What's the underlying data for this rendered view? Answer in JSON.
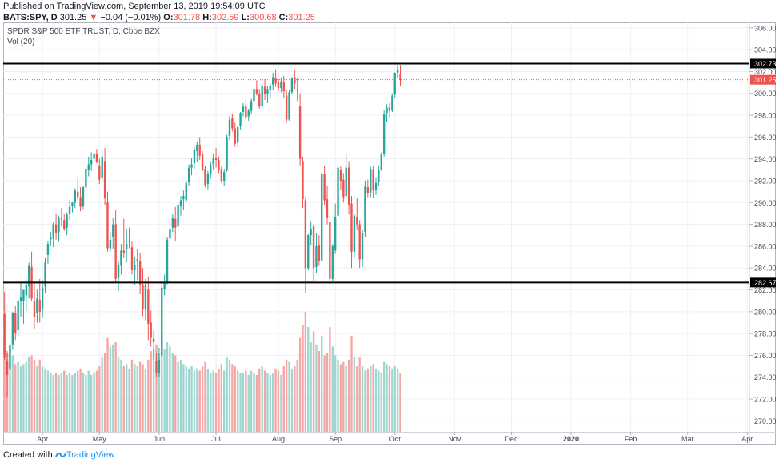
{
  "header": {
    "published": "Published on TradingView.com, September 13, 2019 19:54:09 UTC",
    "symbol": "BATS:SPY, D",
    "last": "301.25",
    "arrow": "▼",
    "change": "−0.04 (−0.01%)",
    "o_label": "O:",
    "o": "301.78",
    "h_label": "H:",
    "h": "302.59",
    "l_label": "L:",
    "l": "300.68",
    "c_label": "C:",
    "c": "301.25"
  },
  "legend": {
    "title": "SPDR S&P 500 ETF TRUST, D, Cboe BZX",
    "volume": "Vol (20)"
  },
  "footer": {
    "created": "Created with",
    "brand": "TradingView"
  },
  "colors": {
    "up": "#26a69a",
    "down": "#ef5350",
    "vol_up": "#9fd6cf",
    "vol_down": "#f5a6a5",
    "grid": "#eef0f3",
    "axis": "#434651",
    "price_tag": "#ef5350",
    "level": "#000000"
  },
  "chart_data": {
    "type": "candlestick",
    "title": "SPDR S&P 500 ETF TRUST, D, Cboe BZX",
    "y_axis": {
      "min": 269,
      "max": 306.5,
      "ticks": [
        "270.00",
        "272.00",
        "274.00",
        "276.00",
        "278.00",
        "280.00",
        "282.00",
        "284.00",
        "286.00",
        "288.00",
        "290.00",
        "292.00",
        "294.00",
        "296.00",
        "298.00",
        "300.00",
        "302.00",
        "304.00",
        "306.00"
      ]
    },
    "x_axis": {
      "labels": [
        "Apr",
        "May",
        "Jun",
        "Jul",
        "Aug",
        "Sep",
        "Oct",
        "Nov",
        "Dec",
        "2020",
        "Feb",
        "Mar",
        "Apr"
      ],
      "label_index": [
        14,
        35,
        57,
        78,
        101,
        122,
        144,
        166,
        187,
        209,
        231,
        252,
        274
      ],
      "bold": [
        "2020"
      ],
      "total_slots": 275
    },
    "levels": [
      {
        "label": "302.73",
        "value": 302.73
      },
      {
        "label": "282.67",
        "value": 282.67
      }
    ],
    "last_price": {
      "label": "301.25",
      "value": 301.25
    },
    "candles": [
      [
        279.8,
        281.8,
        275.6,
        275.8,
        6.6
      ],
      [
        275.5,
        276.4,
        272.2,
        274.2,
        6.2
      ],
      [
        274.7,
        277.5,
        273.8,
        277.0,
        6.8
      ],
      [
        277.0,
        280.0,
        276.5,
        279.9,
        6.0
      ],
      [
        279.9,
        280.5,
        277.4,
        278.0,
        5.2
      ],
      [
        278.3,
        281.2,
        277.8,
        281.0,
        5.4
      ],
      [
        281.0,
        282.6,
        279.5,
        281.3,
        5.0
      ],
      [
        281.0,
        281.8,
        278.9,
        282.0,
        5.2
      ],
      [
        281.5,
        283.0,
        280.1,
        282.5,
        5.4
      ],
      [
        282.3,
        284.5,
        281.2,
        284.2,
        5.8
      ],
      [
        284.1,
        285.5,
        281.0,
        281.2,
        6.0
      ],
      [
        281.0,
        282.8,
        278.4,
        279.5,
        5.6
      ],
      [
        279.9,
        282.0,
        279.0,
        281.2,
        5.0
      ],
      [
        281.1,
        283.0,
        279.0,
        280.0,
        5.6
      ],
      [
        280.3,
        282.9,
        279.4,
        282.2,
        5.0
      ],
      [
        282.3,
        284.9,
        281.7,
        284.5,
        4.8
      ],
      [
        285.2,
        286.5,
        284.4,
        286.2,
        4.6
      ],
      [
        286.6,
        287.3,
        286.0,
        286.8,
        4.4
      ],
      [
        286.7,
        288.2,
        285.9,
        288.0,
        4.2
      ],
      [
        288.0,
        289.0,
        286.6,
        287.2,
        4.4
      ],
      [
        287.3,
        288.8,
        286.4,
        288.6,
        4.2
      ],
      [
        288.5,
        289.5,
        287.8,
        288.6,
        4.4
      ],
      [
        288.4,
        289.0,
        287.4,
        287.6,
        4.6
      ],
      [
        287.7,
        289.1,
        287.0,
        288.9,
        4.2
      ],
      [
        289.0,
        290.2,
        288.4,
        289.6,
        4.4
      ],
      [
        289.7,
        290.1,
        289.1,
        290.0,
        4.2
      ],
      [
        290.0,
        291.3,
        289.5,
        291.1,
        4.4
      ],
      [
        291.0,
        292.2,
        290.2,
        290.5,
        4.6
      ],
      [
        290.5,
        291.4,
        289.2,
        289.6,
        4.8
      ],
      [
        289.7,
        291.5,
        289.4,
        291.4,
        4.4
      ],
      [
        291.4,
        293.2,
        291.0,
        293.1,
        4.2
      ],
      [
        293.0,
        294.2,
        292.4,
        293.5,
        4.6
      ],
      [
        293.5,
        294.6,
        292.9,
        293.9,
        4.2
      ],
      [
        294.0,
        295.2,
        293.6,
        294.5,
        4.4
      ],
      [
        294.5,
        294.9,
        293.6,
        293.7,
        4.6
      ],
      [
        293.4,
        294.0,
        291.7,
        292.1,
        5.0
      ],
      [
        292.3,
        294.8,
        291.9,
        294.2,
        5.8
      ],
      [
        293.8,
        295.0,
        289.8,
        290.4,
        6.2
      ],
      [
        290.1,
        291.0,
        285.5,
        285.8,
        7.6
      ],
      [
        285.8,
        287.3,
        285.5,
        286.6,
        6.8
      ],
      [
        286.8,
        288.6,
        285.7,
        288.0,
        7.0
      ],
      [
        288.0,
        289.3,
        282.7,
        283.0,
        7.2
      ],
      [
        283.1,
        284.7,
        281.9,
        284.3,
        5.8
      ],
      [
        284.2,
        286.2,
        283.4,
        285.6,
        5.6
      ],
      [
        285.6,
        288.5,
        284.9,
        285.4,
        5.0
      ],
      [
        285.7,
        287.6,
        284.5,
        286.2,
        5.2
      ],
      [
        286.4,
        287.7,
        285.8,
        286.5,
        4.8
      ],
      [
        285.9,
        286.4,
        283.4,
        283.8,
        5.6
      ],
      [
        283.8,
        285.0,
        282.4,
        284.3,
        5.2
      ],
      [
        284.6,
        285.7,
        282.9,
        284.8,
        5.0
      ],
      [
        284.6,
        285.4,
        281.6,
        282.5,
        5.4
      ],
      [
        282.5,
        284.0,
        279.6,
        280.2,
        5.2
      ],
      [
        280.2,
        283.0,
        279.2,
        282.5,
        4.8
      ],
      [
        282.0,
        283.2,
        277.4,
        278.9,
        5.6
      ],
      [
        279.0,
        280.1,
        276.8,
        277.6,
        6.4
      ],
      [
        277.2,
        278.3,
        275.6,
        277.5,
        6.6
      ],
      [
        275.5,
        276.2,
        274.0,
        274.4,
        7.0
      ],
      [
        274.4,
        276.7,
        274.0,
        275.6,
        6.2
      ],
      [
        276.0,
        282.6,
        275.9,
        282.2,
        7.8
      ],
      [
        282.1,
        283.4,
        281.5,
        282.7,
        6.6
      ],
      [
        282.7,
        286.8,
        282.5,
        286.6,
        7.2
      ],
      [
        286.7,
        288.5,
        286.3,
        287.6,
        6.8
      ],
      [
        287.7,
        288.9,
        287.3,
        288.6,
        6.2
      ],
      [
        288.5,
        289.6,
        286.5,
        287.7,
        6.0
      ],
      [
        287.8,
        290.0,
        287.5,
        289.8,
        5.4
      ],
      [
        289.7,
        290.6,
        288.8,
        290.2,
        5.6
      ],
      [
        290.3,
        291.1,
        289.3,
        290.6,
        5.2
      ],
      [
        290.2,
        292.0,
        290.0,
        291.8,
        5.0
      ],
      [
        291.9,
        293.5,
        291.5,
        293.2,
        4.8
      ],
      [
        293.2,
        294.1,
        292.5,
        293.5,
        5.0
      ],
      [
        293.6,
        295.1,
        293.1,
        294.8,
        4.6
      ],
      [
        294.7,
        295.6,
        293.7,
        295.3,
        4.8
      ],
      [
        295.3,
        296.0,
        293.9,
        294.3,
        4.6
      ],
      [
        294.4,
        294.7,
        292.9,
        293.0,
        5.0
      ],
      [
        293.1,
        293.4,
        291.4,
        291.6,
        5.4
      ],
      [
        291.7,
        292.9,
        291.2,
        292.6,
        4.8
      ],
      [
        292.6,
        293.8,
        292.2,
        293.5,
        4.4
      ],
      [
        293.5,
        294.5,
        293.0,
        294.1,
        4.6
      ],
      [
        294.1,
        295.0,
        293.2,
        293.9,
        4.4
      ],
      [
        293.9,
        294.2,
        292.7,
        293.0,
        4.8
      ],
      [
        293.1,
        293.3,
        291.8,
        292.0,
        5.2
      ],
      [
        292.0,
        293.1,
        291.5,
        292.8,
        4.6
      ],
      [
        293.0,
        296.2,
        292.8,
        296.0,
        5.8
      ],
      [
        296.1,
        297.9,
        295.7,
        297.6,
        5.6
      ],
      [
        297.7,
        298.1,
        296.5,
        296.8,
        5.2
      ],
      [
        296.8,
        297.3,
        295.1,
        295.4,
        5.0
      ],
      [
        295.5,
        297.0,
        295.2,
        296.9,
        4.6
      ],
      [
        297.0,
        298.3,
        296.7,
        298.2,
        4.4
      ],
      [
        298.3,
        299.1,
        297.9,
        298.8,
        4.4
      ],
      [
        298.8,
        299.5,
        297.5,
        297.8,
        4.6
      ],
      [
        297.9,
        298.6,
        297.5,
        298.4,
        4.2
      ],
      [
        298.4,
        299.5,
        298.1,
        299.3,
        4.6
      ],
      [
        299.3,
        300.6,
        298.7,
        300.4,
        4.4
      ],
      [
        300.4,
        301.2,
        299.8,
        300.0,
        4.2
      ],
      [
        300.0,
        300.4,
        298.6,
        298.8,
        4.8
      ],
      [
        298.8,
        300.9,
        298.6,
        300.7,
        5.0
      ],
      [
        300.6,
        301.3,
        299.4,
        299.9,
        4.6
      ],
      [
        299.9,
        300.7,
        299.1,
        300.4,
        4.4
      ],
      [
        300.3,
        300.9,
        299.6,
        300.7,
        4.2
      ],
      [
        300.8,
        301.9,
        300.3,
        301.5,
        4.4
      ],
      [
        301.4,
        302.2,
        300.6,
        300.9,
        4.8
      ],
      [
        301.0,
        301.3,
        300.2,
        300.5,
        4.6
      ],
      [
        300.5,
        301.4,
        300.1,
        301.1,
        4.2
      ],
      [
        301.0,
        301.6,
        299.6,
        300.2,
        5.0
      ],
      [
        299.8,
        300.3,
        297.3,
        297.6,
        5.6
      ],
      [
        297.6,
        300.3,
        297.5,
        300.1,
        5.4
      ],
      [
        300.1,
        301.5,
        299.9,
        301.4,
        4.8
      ],
      [
        301.5,
        302.2,
        300.4,
        300.9,
        5.0
      ],
      [
        300.4,
        301.4,
        299.3,
        300.3,
        5.6
      ],
      [
        298.8,
        300.0,
        293.4,
        294.0,
        7.6
      ],
      [
        293.8,
        294.2,
        289.5,
        290.3,
        8.8
      ],
      [
        290.2,
        290.5,
        281.7,
        284.0,
        10.0
      ],
      [
        284.0,
        287.1,
        283.8,
        287.0,
        8.6
      ],
      [
        287.0,
        288.3,
        286.1,
        287.6,
        7.2
      ],
      [
        287.8,
        288.0,
        282.8,
        284.0,
        8.2
      ],
      [
        284.1,
        287.2,
        283.5,
        286.0,
        7.0
      ],
      [
        286.1,
        287.0,
        284.2,
        284.6,
        6.4
      ],
      [
        284.7,
        292.8,
        284.6,
        292.6,
        7.8
      ],
      [
        292.6,
        293.4,
        289.8,
        290.2,
        6.0
      ],
      [
        290.3,
        291.5,
        288.0,
        288.6,
        6.2
      ],
      [
        288.2,
        289.0,
        282.4,
        283.0,
        8.6
      ],
      [
        283.0,
        286.2,
        282.8,
        286.0,
        6.8
      ],
      [
        285.6,
        289.9,
        285.3,
        288.7,
        6.0
      ],
      [
        288.8,
        293.5,
        288.7,
        293.2,
        5.6
      ],
      [
        293.0,
        293.3,
        291.2,
        292.0,
        5.2
      ],
      [
        292.1,
        292.7,
        290.0,
        290.5,
        5.4
      ],
      [
        290.6,
        294.5,
        290.3,
        293.2,
        5.0
      ],
      [
        293.2,
        293.8,
        288.9,
        289.8,
        5.6
      ],
      [
        289.9,
        290.6,
        284.0,
        285.5,
        7.8
      ],
      [
        285.5,
        289.0,
        285.0,
        288.8,
        5.8
      ],
      [
        288.7,
        290.4,
        287.5,
        288.0,
        5.0
      ],
      [
        288.0,
        288.4,
        284.0,
        284.8,
        5.8
      ],
      [
        284.8,
        287.5,
        284.1,
        287.2,
        5.0
      ],
      [
        287.3,
        292.0,
        286.8,
        291.5,
        4.6
      ],
      [
        291.4,
        292.1,
        290.5,
        290.9,
        4.8
      ],
      [
        290.9,
        293.3,
        290.5,
        293.1,
        5.0
      ],
      [
        293.0,
        293.4,
        290.4,
        291.1,
        5.2
      ],
      [
        291.2,
        292.3,
        290.7,
        291.8,
        4.8
      ],
      [
        291.9,
        293.4,
        291.5,
        293.0,
        4.6
      ],
      [
        293.0,
        294.6,
        292.9,
        294.4,
        4.4
      ],
      [
        294.5,
        298.5,
        294.2,
        298.1,
        5.4
      ],
      [
        298.2,
        299.0,
        297.4,
        298.7,
        5.2
      ],
      [
        298.7,
        299.1,
        297.8,
        298.4,
        5.0
      ],
      [
        298.5,
        300.0,
        298.3,
        299.8,
        4.8
      ],
      [
        299.9,
        301.9,
        299.6,
        301.9,
        5.0
      ],
      [
        301.9,
        302.6,
        301.4,
        302.2,
        4.8
      ],
      [
        301.8,
        302.6,
        300.7,
        301.25,
        4.4
      ]
    ]
  }
}
